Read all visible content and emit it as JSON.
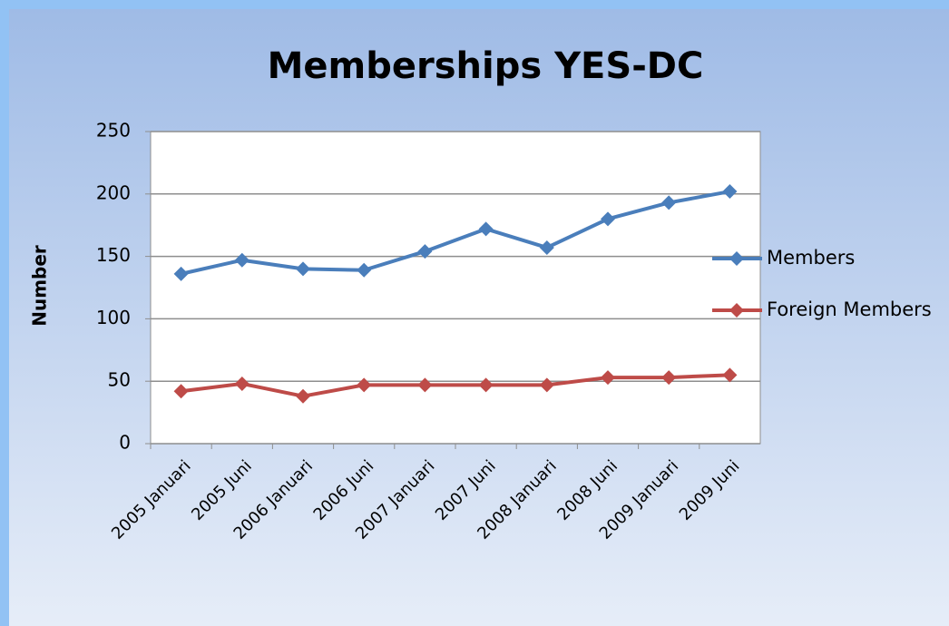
{
  "chart_data": {
    "type": "line",
    "title": "Memberships YES-DC",
    "ylabel": "Number",
    "categories": [
      "2005 Januari",
      "2005 Juni",
      "2006 Januari",
      "2006 Juni",
      "2007 Januari",
      "2007 Juni",
      "2008 Januari",
      "2008 Juni",
      "2009 Januari",
      "2009 Juni"
    ],
    "series": [
      {
        "name": "Members",
        "color": "#4a7ebb",
        "values": [
          136,
          147,
          140,
          139,
          154,
          172,
          157,
          180,
          193,
          202
        ]
      },
      {
        "name": "Foreign Members",
        "color": "#be4b48",
        "values": [
          42,
          48,
          38,
          47,
          47,
          47,
          47,
          53,
          53,
          55
        ]
      }
    ],
    "ylim": [
      0,
      250
    ],
    "yticks": [
      0,
      50,
      100,
      150,
      200,
      250
    ],
    "grid": true,
    "legend": "right"
  }
}
